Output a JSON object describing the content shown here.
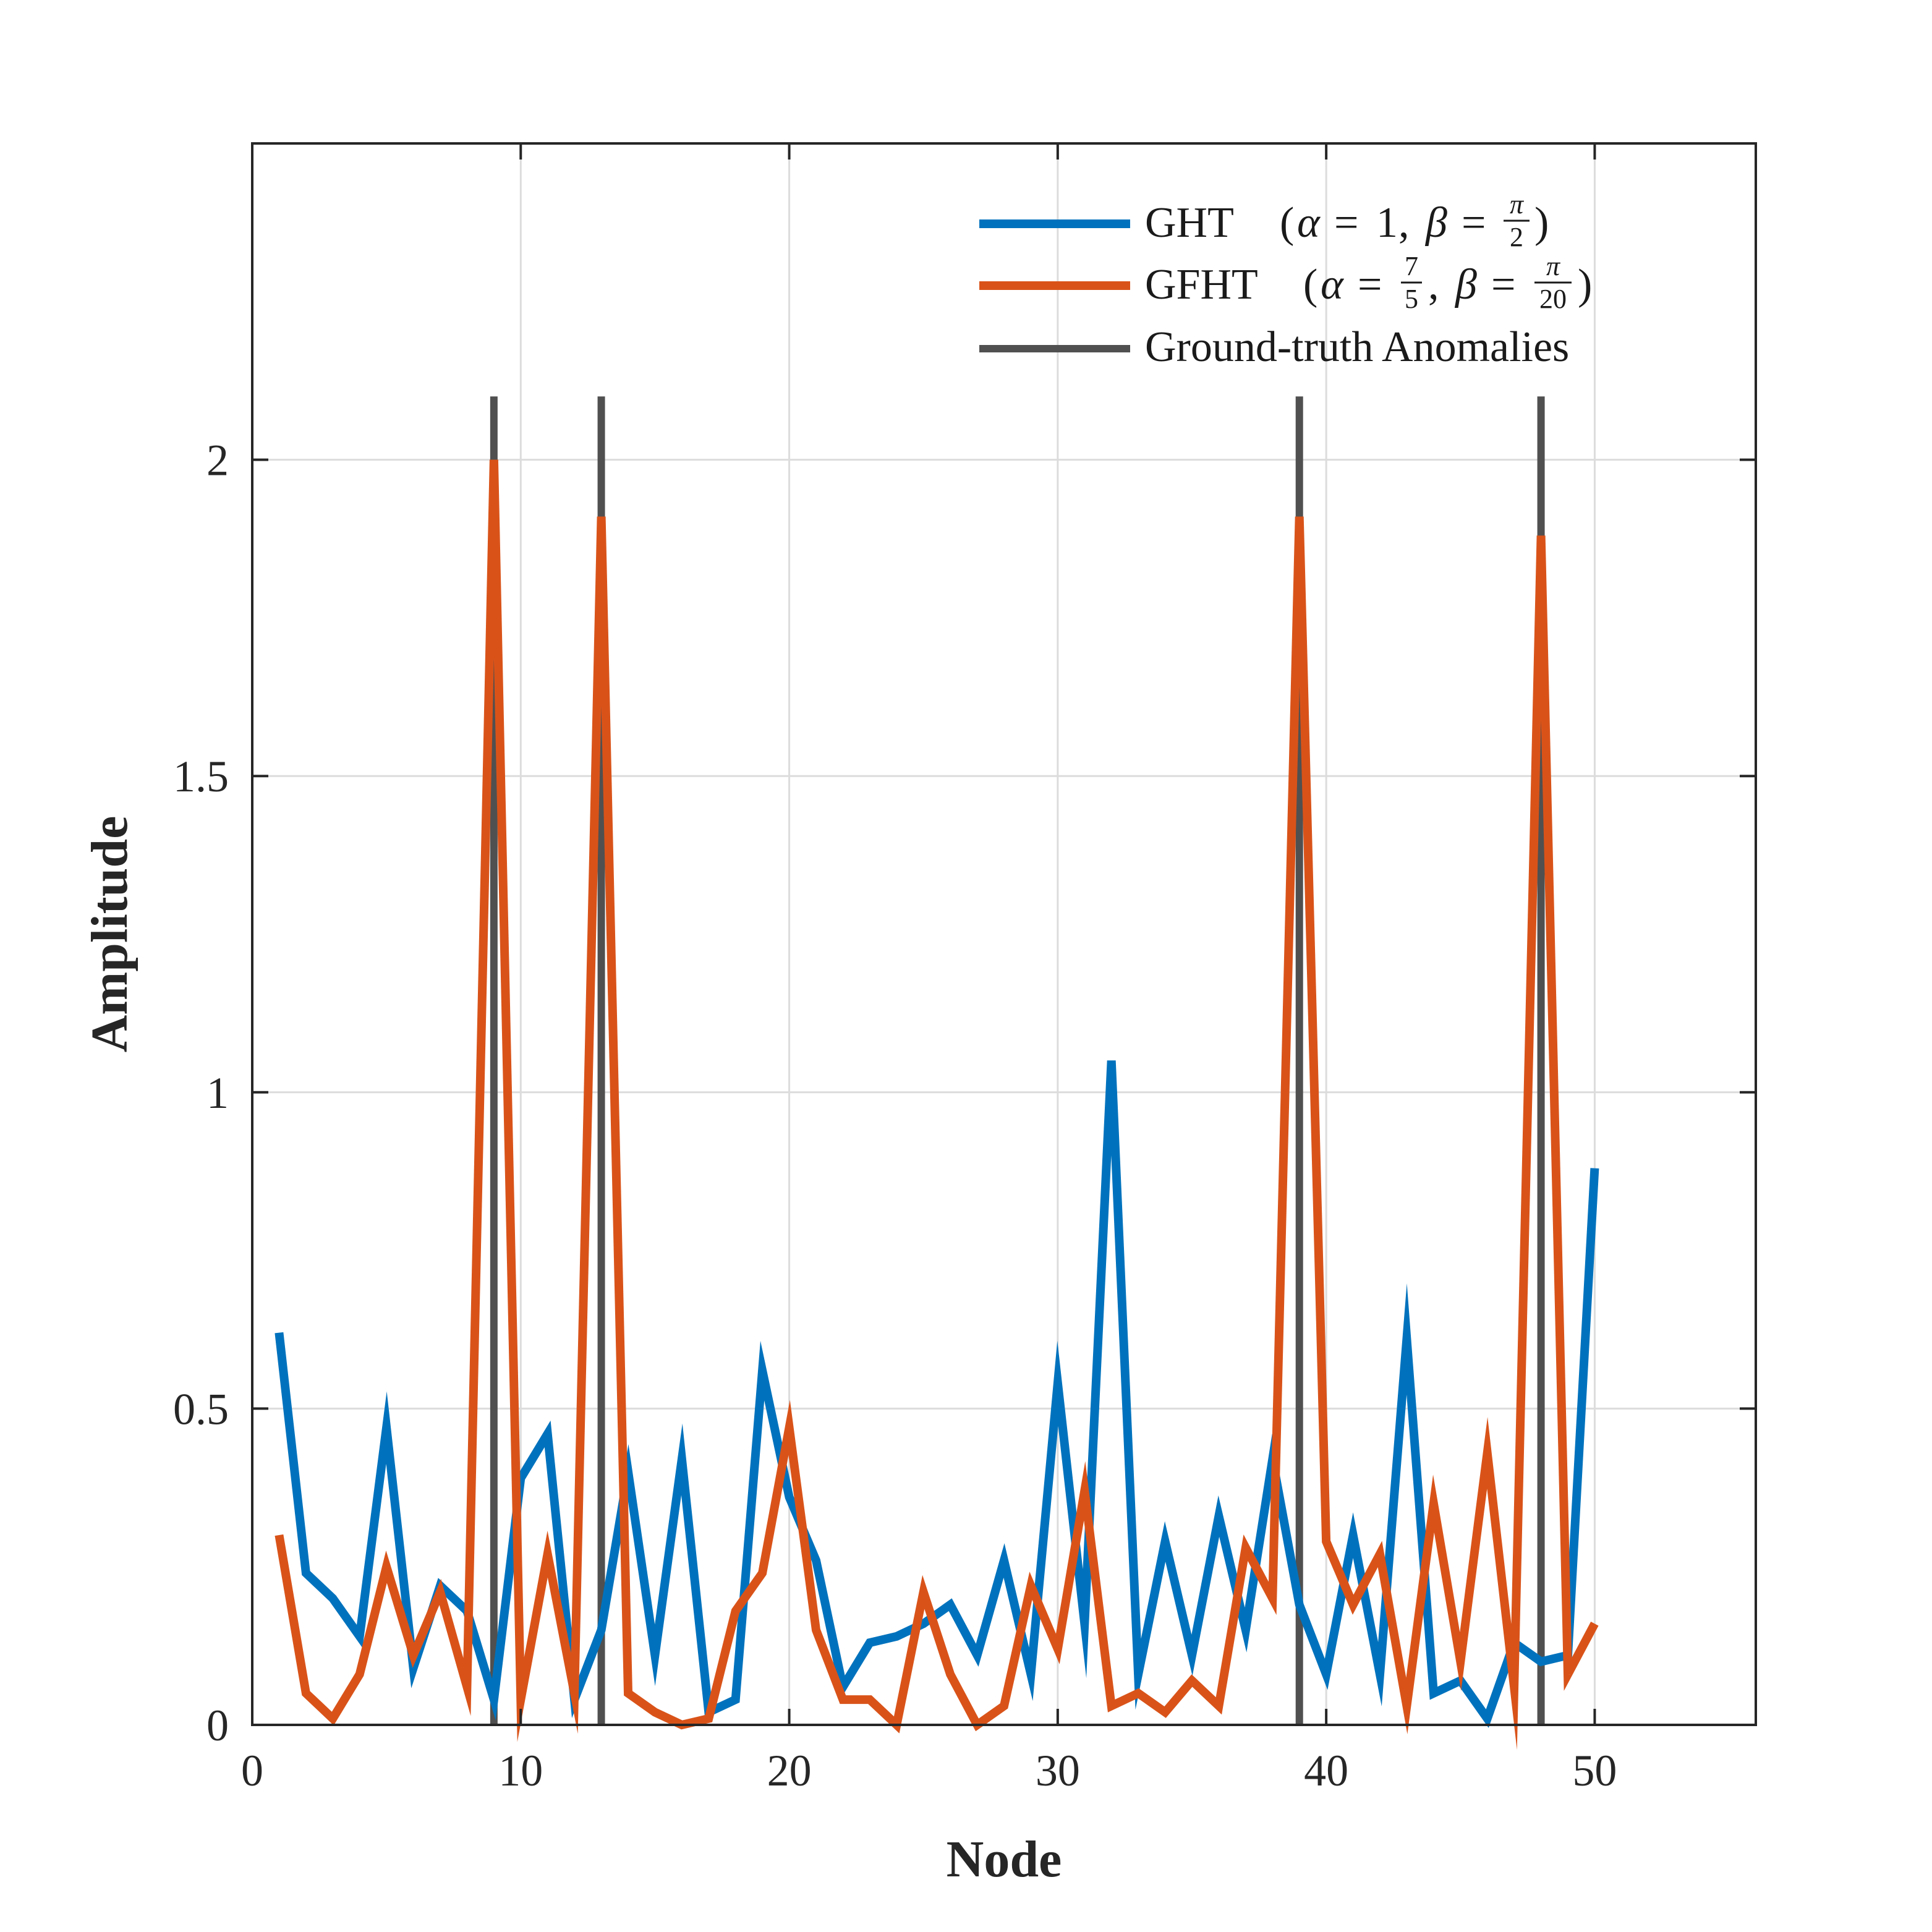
{
  "chart_data": {
    "type": "line",
    "title": "",
    "xlabel": "Node",
    "ylabel": "Amplitude",
    "xlim": [
      0,
      56
    ],
    "ylim": [
      0,
      2.5
    ],
    "xticks": [
      0,
      10,
      20,
      30,
      40,
      50
    ],
    "xtick_labels": [
      "0",
      "10",
      "20",
      "30",
      "40",
      "50"
    ],
    "yticks": [
      0,
      0.5,
      1,
      1.5,
      2
    ],
    "ytick_labels": [
      "0",
      "0.5",
      "1",
      "1.5",
      "2"
    ],
    "grid": true,
    "legend_position": "top-right",
    "colors": {
      "ght": "#0072BD",
      "gfht": "#D95319",
      "anomaly": "#505050",
      "axis": "#262626",
      "grid": "#dcdcdc"
    },
    "legend": {
      "ght": {
        "name": "GHT",
        "open": "(",
        "alpha": "α",
        "eq": "=",
        "alpha_value": "1",
        "sep": ",",
        "beta": "β",
        "beta_num": "π",
        "beta_den": "2",
        "close": ")"
      },
      "gfht": {
        "name": "GFHT",
        "open": "(",
        "alpha": "α",
        "eq": "=",
        "alpha_num": "7",
        "alpha_den": "5",
        "sep": ",",
        "beta": "β",
        "beta_num": "π",
        "beta_den": "20",
        "close": ")"
      },
      "anomaly": "Ground-truth Anomalies"
    },
    "x": [
      1,
      2,
      3,
      4,
      5,
      6,
      7,
      8,
      9,
      10,
      11,
      12,
      13,
      14,
      15,
      16,
      17,
      18,
      19,
      20,
      21,
      22,
      23,
      24,
      25,
      26,
      27,
      28,
      29,
      30,
      31,
      32,
      33,
      34,
      35,
      36,
      37,
      38,
      39,
      40,
      41,
      42,
      43,
      44,
      45,
      46,
      47,
      48,
      49,
      50
    ],
    "series": [
      {
        "name": "GHT",
        "color_key": "ght",
        "values": [
          0.62,
          0.24,
          0.2,
          0.14,
          0.47,
          0.09,
          0.22,
          0.18,
          0.04,
          0.39,
          0.46,
          0.04,
          0.15,
          0.4,
          0.11,
          0.42,
          0.02,
          0.04,
          0.56,
          0.36,
          0.26,
          0.06,
          0.13,
          0.14,
          0.16,
          0.19,
          0.11,
          0.26,
          0.08,
          0.54,
          0.16,
          1.05,
          0.08,
          0.29,
          0.11,
          0.33,
          0.15,
          0.42,
          0.19,
          0.08,
          0.3,
          0.08,
          0.61,
          0.05,
          0.07,
          0.01,
          0.13,
          0.1,
          0.11,
          0.88
        ]
      },
      {
        "name": "GFHT",
        "color_key": "gfht",
        "values": [
          0.3,
          0.05,
          0.01,
          0.08,
          0.25,
          0.11,
          0.21,
          0.06,
          2.0,
          0.04,
          0.27,
          0.05,
          1.91,
          0.05,
          0.02,
          0.0,
          0.01,
          0.18,
          0.24,
          0.47,
          0.15,
          0.04,
          0.04,
          0.0,
          0.21,
          0.08,
          0.0,
          0.03,
          0.22,
          0.12,
          0.37,
          0.03,
          0.05,
          0.02,
          0.07,
          0.03,
          0.28,
          0.2,
          1.91,
          0.29,
          0.19,
          0.27,
          0.03,
          0.35,
          0.1,
          0.43,
          0.06,
          1.88,
          0.08,
          0.16
        ]
      }
    ],
    "anomalies": {
      "name": "Ground-truth Anomalies",
      "color_key": "anomaly",
      "x": [
        9,
        13,
        39,
        48
      ],
      "height": 2.1
    }
  }
}
